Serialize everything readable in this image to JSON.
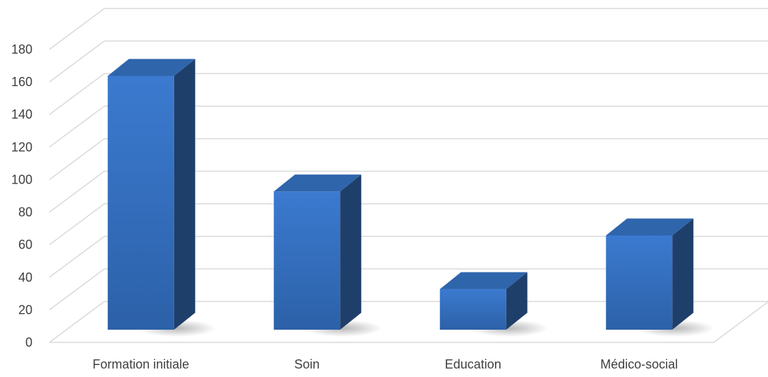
{
  "chart_data": {
    "type": "bar",
    "style": "3d-column",
    "categories": [
      "Formation initiale",
      "Soin",
      "Education",
      "Médico-social"
    ],
    "values": [
      162,
      91,
      31,
      64
    ],
    "ylim": [
      0,
      180
    ],
    "yticks": [
      0,
      20,
      40,
      60,
      80,
      100,
      120,
      140,
      160,
      180
    ],
    "title": "",
    "xlabel": "",
    "ylabel": "",
    "grid": true,
    "legend": "none",
    "colors": {
      "bar_front_top": "#3b7ad0",
      "bar_front_bottom": "#2c61a8",
      "bar_side": "#1f3f6b",
      "bar_top": "#2f65ab",
      "grid": "#d9d9d9",
      "text": "#404040"
    }
  }
}
